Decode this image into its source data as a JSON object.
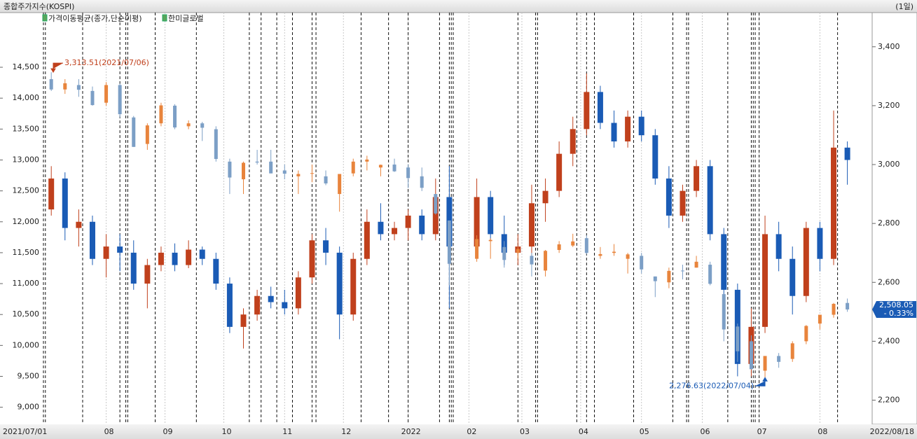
{
  "chart_data": {
    "type": "candlestick",
    "title": "종합주가지수(KOSPI)",
    "period": "(1일)",
    "indicators": [
      {
        "name": "가격이동평균(종가,단순이평)"
      }
    ],
    "xlim": [
      "2021/07/01",
      "2022/08/18"
    ],
    "xticks": [
      {
        "value": "2021/08/02",
        "label": "08"
      },
      {
        "value": "2021/09/01",
        "label": "09"
      },
      {
        "value": "2021/10/01",
        "label": "10"
      },
      {
        "value": "2021/11/01",
        "label": "11"
      },
      {
        "value": "2021/12/01",
        "label": "12"
      },
      {
        "value": "2022/01/03",
        "label": "2022"
      },
      {
        "value": "2022/02/03",
        "label": "02"
      },
      {
        "value": "2022/03/02",
        "label": "03"
      },
      {
        "value": "2022/04/01",
        "label": "04"
      },
      {
        "value": "2022/05/02",
        "label": "05"
      },
      {
        "value": "2022/06/02",
        "label": "06"
      },
      {
        "value": "2022/07/01",
        "label": "07"
      },
      {
        "value": "2022/08/01",
        "label": "08"
      }
    ],
    "ylim": [
      8724,
      15384
    ],
    "yticks": [
      {
        "value": 9000,
        "label": "9,000"
      },
      {
        "value": 9500,
        "label": "9,500"
      },
      {
        "value": 10000,
        "label": "10,000"
      },
      {
        "value": 10500,
        "label": "10,500"
      },
      {
        "value": 11000,
        "label": "11,000"
      },
      {
        "value": 11500,
        "label": "11,500"
      },
      {
        "value": 12000,
        "label": "12,000"
      },
      {
        "value": 12500,
        "label": "12,500"
      },
      {
        "value": 13000,
        "label": "13,000"
      },
      {
        "value": 13500,
        "label": "13,500"
      },
      {
        "value": 14000,
        "label": "14,000"
      },
      {
        "value": 14500,
        "label": "14,500"
      }
    ],
    "y2lim": [
      2118,
      3516
    ],
    "y2ticks": [
      {
        "value": 2200,
        "label": "2,200"
      },
      {
        "value": 2400,
        "label": "2,400"
      },
      {
        "value": 2600,
        "label": "2,600"
      },
      {
        "value": 2800,
        "label": "2,800"
      },
      {
        "value": 3000,
        "label": "3,000"
      },
      {
        "value": 3200,
        "label": "3,200"
      },
      {
        "value": 3400,
        "label": "3,400"
      }
    ],
    "event_dates": [
      "2021/07/01",
      "2021/07/02",
      "2021/07/21",
      "2021/08/09",
      "2021/08/12",
      "2021/08/13",
      "2021/08/27",
      "2021/09/17",
      "2021/10/14",
      "2021/10/20",
      "2021/10/28",
      "2021/11/05",
      "2021/11/15",
      "2021/11/17",
      "2021/12/10",
      "2021/12/24",
      "2022/01/03",
      "2022/01/19",
      "2022/01/24",
      "2022/01/25",
      "2022/01/26",
      "2022/02/28",
      "2022/03/09",
      "2022/03/10",
      "2022/03/30",
      "2022/04/04",
      "2022/04/08",
      "2022/04/28",
      "2022/05/18",
      "2022/05/25",
      "2022/05/26",
      "2022/06/15",
      "2022/06/27",
      "2022/06/28",
      "2022/06/29",
      "2022/07/01",
      "2022/08/10"
    ],
    "x": [
      "2021/07/05",
      "2021/07/12",
      "2021/07/19",
      "2021/07/26",
      "2021/08/02",
      "2021/08/09",
      "2021/08/16",
      "2021/08/23",
      "2021/08/30",
      "2021/09/06",
      "2021/09/13",
      "2021/09/20",
      "2021/09/27",
      "2021/10/04",
      "2021/10/11",
      "2021/10/18",
      "2021/10/25",
      "2021/11/01",
      "2021/11/08",
      "2021/11/15",
      "2021/11/22",
      "2021/11/29",
      "2021/12/06",
      "2021/12/13",
      "2021/12/20",
      "2021/12/27",
      "2022/01/03",
      "2022/01/10",
      "2022/01/17",
      "2022/01/24",
      "2022/02/07",
      "2022/02/14",
      "2022/02/21",
      "2022/02/28",
      "2022/03/07",
      "2022/03/14",
      "2022/03/21",
      "2022/03/28",
      "2022/04/04",
      "2022/04/11",
      "2022/04/18",
      "2022/04/25",
      "2022/05/02",
      "2022/05/09",
      "2022/05/16",
      "2022/05/23",
      "2022/05/30",
      "2022/06/06",
      "2022/06/13",
      "2022/06/20",
      "2022/06/27",
      "2022/07/04",
      "2022/07/11",
      "2022/07/18",
      "2022/07/25",
      "2022/08/01",
      "2022/08/08",
      "2022/08/15"
    ],
    "series": [
      {
        "name": "한미글로벌",
        "axis": "y",
        "color_up": "#c0401c",
        "color_down": "#1a5bb5",
        "open": [
          12200,
          12700,
          11900,
          12000,
          11400,
          11600,
          11500,
          11000,
          11300,
          11500,
          11300,
          11550,
          11400,
          11000,
          10300,
          10500,
          10800,
          10700,
          10600,
          11100,
          11700,
          11500,
          10500,
          11400,
          12000,
          11800,
          11900,
          12100,
          11800,
          12400,
          11600,
          12400,
          11800,
          11500,
          11600,
          12300,
          12500,
          13100,
          13500,
          14100,
          13600,
          13300,
          13700,
          13400,
          12700,
          12100,
          12500,
          12900,
          11800,
          10900,
          9700,
          10300,
          11800,
          11400,
          10800,
          11900,
          11400,
          13200
        ],
        "high": [
          12900,
          12800,
          12200,
          12100,
          11800,
          11800,
          11700,
          11400,
          11600,
          11650,
          11700,
          11600,
          11500,
          11100,
          10600,
          10900,
          10950,
          10900,
          11200,
          11800,
          11900,
          11600,
          11500,
          12200,
          12300,
          12000,
          12200,
          12200,
          12700,
          12900,
          12700,
          12500,
          12100,
          11800,
          12600,
          12700,
          13300,
          13700,
          14400,
          14200,
          13800,
          13800,
          13800,
          13500,
          12900,
          12600,
          13000,
          13000,
          11900,
          11000,
          10600,
          12100,
          12000,
          11600,
          12000,
          12000,
          13800,
          13300
        ],
        "low": [
          12100,
          11700,
          11600,
          11300,
          11100,
          11200,
          10900,
          10600,
          11200,
          11200,
          11250,
          11300,
          10900,
          10200,
          9950,
          10400,
          10600,
          10500,
          10500,
          11000,
          11300,
          10100,
          10400,
          11300,
          11700,
          11700,
          11700,
          11700,
          11700,
          10600,
          11500,
          11700,
          11300,
          11300,
          11400,
          12000,
          12400,
          12900,
          13400,
          13500,
          13200,
          13200,
          13300,
          12600,
          11900,
          12000,
          12400,
          11700,
          10600,
          9500,
          9500,
          10200,
          11200,
          10500,
          10700,
          11200,
          11300,
          12600
        ],
        "close": [
          12700,
          11900,
          12000,
          11400,
          11600,
          11500,
          11000,
          11300,
          11500,
          11300,
          11550,
          11400,
          11000,
          10300,
          10500,
          10800,
          10700,
          10600,
          11100,
          11700,
          11500,
          10500,
          11400,
          12000,
          11800,
          11900,
          12100,
          11800,
          12400,
          11600,
          12400,
          11800,
          11500,
          11600,
          12300,
          12500,
          13100,
          13500,
          14100,
          13600,
          13300,
          13700,
          13400,
          12700,
          12100,
          12500,
          12900,
          11800,
          10900,
          9700,
          10300,
          11800,
          11400,
          10800,
          11900,
          11400,
          13200,
          13000
        ]
      },
      {
        "axis": "y2",
        "color_up": "#e8843c",
        "color_down": "#7c9fc6",
        "open": [
          3290,
          3255,
          3270,
          3250,
          3210,
          3270,
          3160,
          3070,
          3140,
          3200,
          3130,
          3140,
          3120,
          3010,
          2950,
          3010,
          3010,
          2980,
          2960,
          2970,
          2960,
          2900,
          2970,
          3010,
          2990,
          3000,
          2990,
          2960,
          2900,
          2810,
          2680,
          2740,
          2720,
          2700,
          2690,
          2640,
          2710,
          2725,
          2750,
          2690,
          2700,
          2680,
          2690,
          2620,
          2600,
          2640,
          2650,
          2660,
          2560,
          2450,
          2400,
          2300,
          2350,
          2340,
          2400,
          2460,
          2490,
          2530
        ],
        "high": [
          3313.51,
          3290,
          3290,
          3265,
          3280,
          3275,
          3165,
          3140,
          3210,
          3205,
          3150,
          3145,
          3130,
          3020,
          3010,
          3050,
          3050,
          3000,
          2980,
          3000,
          2980,
          2950,
          3020,
          3030,
          3000,
          3020,
          3000,
          2990,
          2900,
          2810,
          2760,
          2750,
          2740,
          2720,
          2700,
          2710,
          2740,
          2765,
          2760,
          2720,
          2730,
          2700,
          2700,
          2620,
          2650,
          2660,
          2690,
          2670,
          2560,
          2460,
          2420,
          2340,
          2360,
          2400,
          2455,
          2490,
          2530,
          2545
        ],
        "low": [
          3250,
          3240,
          3230,
          3200,
          3200,
          3160,
          3060,
          3050,
          3130,
          3120,
          3120,
          3080,
          3010,
          2900,
          2900,
          3000,
          2970,
          2950,
          2900,
          2940,
          2930,
          2840,
          2960,
          2980,
          2960,
          2975,
          2920,
          2910,
          2830,
          2590,
          2670,
          2680,
          2650,
          2680,
          2620,
          2620,
          2700,
          2720,
          2695,
          2680,
          2690,
          2630,
          2630,
          2550,
          2580,
          2610,
          2650,
          2590,
          2400,
          2330,
          2305,
          2276.63,
          2310,
          2330,
          2390,
          2440,
          2480,
          2500
        ],
        "close": [
          3255,
          3276,
          3254,
          3202,
          3270,
          3171,
          3060,
          3133,
          3201,
          3126,
          3140,
          3125,
          3019,
          2956,
          3006,
          3007,
          2970,
          2969,
          2968,
          2971,
          2936,
          2968,
          3010,
          3017,
          2999,
          2977,
          2954,
          2921,
          2834,
          2663,
          2747,
          2744,
          2676,
          2713,
          2661,
          2707,
          2729,
          2739,
          2700,
          2696,
          2704,
          2695,
          2644,
          2604,
          2639,
          2638,
          2670,
          2595,
          2440,
          2366,
          2305,
          2350,
          2330,
          2393,
          2452,
          2490,
          2527,
          2508.05
        ]
      }
    ],
    "annotations": [
      {
        "label": "3,313.51(2021/07/06)",
        "value": 3313.51,
        "x": "2021/07/06",
        "kind": "high"
      },
      {
        "label": "2,276.63(2022/07/04)",
        "value": 2276.63,
        "x": "2022/07/04",
        "kind": "low"
      }
    ],
    "last_value": {
      "value": 2508.05,
      "label": "2,508.05",
      "change": -0.33,
      "change_label": "- 0.33%"
    }
  }
}
